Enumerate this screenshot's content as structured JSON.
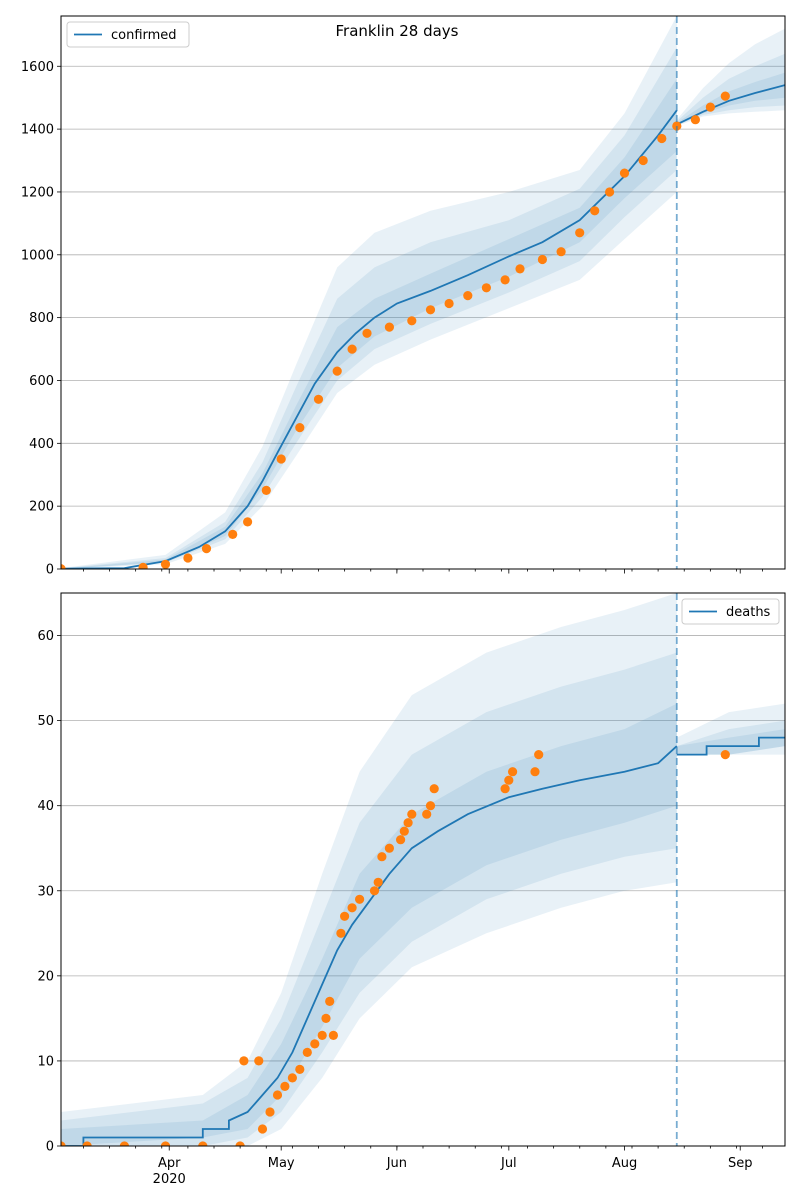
{
  "figure": {
    "title": "Franklin 28 days",
    "forecast_start": "2020-08-15",
    "colors": {
      "model": "#1f77b4",
      "observed": "#ff7f0e",
      "band": "#1f77b4",
      "grid": "#b0b0b0"
    }
  },
  "chart_data": [
    {
      "type": "line",
      "panel": "top",
      "title": "Franklin 28 days",
      "legend": {
        "entries": [
          "confirmed"
        ],
        "placement": "top-left"
      },
      "xlim": [
        "2020-03-03",
        "2020-09-13"
      ],
      "ylim": [
        0,
        1760
      ],
      "yticks": [
        0,
        200,
        400,
        600,
        800,
        1000,
        1200,
        1400,
        1600
      ],
      "grid": "horizontal",
      "model": {
        "name": "confirmed",
        "points": [
          [
            "2020-03-03",
            1
          ],
          [
            "2020-03-20",
            3
          ],
          [
            "2020-03-31",
            25
          ],
          [
            "2020-04-09",
            70
          ],
          [
            "2020-04-16",
            120
          ],
          [
            "2020-04-22",
            200
          ],
          [
            "2020-04-26",
            280
          ],
          [
            "2020-04-30",
            370
          ],
          [
            "2020-05-05",
            480
          ],
          [
            "2020-05-10",
            590
          ],
          [
            "2020-05-16",
            690
          ],
          [
            "2020-05-21",
            750
          ],
          [
            "2020-05-26",
            800
          ],
          [
            "2020-06-01",
            845
          ],
          [
            "2020-06-10",
            885
          ],
          [
            "2020-06-20",
            935
          ],
          [
            "2020-07-01",
            995
          ],
          [
            "2020-07-10",
            1040
          ],
          [
            "2020-07-20",
            1110
          ],
          [
            "2020-08-01",
            1250
          ],
          [
            "2020-08-10",
            1380
          ],
          [
            "2020-08-15",
            1460
          ]
        ],
        "forecast": [
          [
            "2020-08-15",
            1415
          ],
          [
            "2020-08-22",
            1455
          ],
          [
            "2020-08-29",
            1490
          ],
          [
            "2020-09-05",
            1515
          ],
          [
            "2020-09-13",
            1540
          ]
        ]
      },
      "bands": {
        "dates": [
          "2020-03-03",
          "2020-03-31",
          "2020-04-16",
          "2020-04-26",
          "2020-05-05",
          "2020-05-16",
          "2020-05-26",
          "2020-06-10",
          "2020-07-01",
          "2020-07-20",
          "2020-08-01",
          "2020-08-15"
        ],
        "outer_low": [
          0,
          15,
          80,
          200,
          360,
          560,
          650,
          730,
          830,
          920,
          1050,
          1200
        ],
        "outer_high": [
          3,
          45,
          180,
          390,
          650,
          960,
          1070,
          1140,
          1200,
          1270,
          1450,
          1760
        ],
        "mid_low": [
          0,
          20,
          95,
          230,
          400,
          600,
          700,
          780,
          880,
          980,
          1120,
          1270
        ],
        "mid_high": [
          2,
          35,
          150,
          340,
          580,
          860,
          960,
          1040,
          1110,
          1210,
          1380,
          1660
        ],
        "inner_low": [
          0,
          22,
          105,
          255,
          440,
          640,
          740,
          830,
          930,
          1040,
          1180,
          1330
        ],
        "inner_high": [
          1,
          30,
          135,
          305,
          520,
          770,
          860,
          940,
          1050,
          1150,
          1310,
          1560
        ],
        "forecast_dates": [
          "2020-08-15",
          "2020-08-22",
          "2020-08-29",
          "2020-09-05",
          "2020-09-13"
        ],
        "forecast_outer_low": [
          1410,
          1440,
          1450,
          1455,
          1460
        ],
        "forecast_outer_high": [
          1430,
          1530,
          1610,
          1670,
          1720
        ],
        "forecast_mid_low": [
          1412,
          1445,
          1460,
          1470,
          1475
        ],
        "forecast_mid_high": [
          1425,
          1500,
          1560,
          1600,
          1640
        ],
        "forecast_inner_low": [
          1414,
          1450,
          1475,
          1490,
          1500
        ],
        "forecast_inner_high": [
          1420,
          1475,
          1520,
          1550,
          1580
        ]
      },
      "observed": {
        "name": "observed",
        "points": [
          [
            "2020-03-03",
            1
          ],
          [
            "2020-03-25",
            5
          ],
          [
            "2020-03-31",
            15
          ],
          [
            "2020-04-06",
            35
          ],
          [
            "2020-04-11",
            65
          ],
          [
            "2020-04-18",
            110
          ],
          [
            "2020-04-22",
            150
          ],
          [
            "2020-04-27",
            250
          ],
          [
            "2020-05-01",
            350
          ],
          [
            "2020-05-06",
            450
          ],
          [
            "2020-05-11",
            540
          ],
          [
            "2020-05-16",
            630
          ],
          [
            "2020-05-20",
            700
          ],
          [
            "2020-05-24",
            750
          ],
          [
            "2020-05-30",
            770
          ],
          [
            "2020-06-05",
            790
          ],
          [
            "2020-06-10",
            825
          ],
          [
            "2020-06-15",
            845
          ],
          [
            "2020-06-20",
            870
          ],
          [
            "2020-06-25",
            895
          ],
          [
            "2020-06-30",
            920
          ],
          [
            "2020-07-04",
            955
          ],
          [
            "2020-07-10",
            985
          ],
          [
            "2020-07-15",
            1010
          ],
          [
            "2020-07-20",
            1070
          ],
          [
            "2020-07-24",
            1140
          ],
          [
            "2020-07-28",
            1200
          ],
          [
            "2020-08-01",
            1260
          ],
          [
            "2020-08-06",
            1300
          ],
          [
            "2020-08-11",
            1370
          ],
          [
            "2020-08-15",
            1410
          ],
          [
            "2020-08-20",
            1430
          ],
          [
            "2020-08-24",
            1470
          ],
          [
            "2020-08-28",
            1505
          ]
        ]
      }
    },
    {
      "type": "line",
      "panel": "bottom",
      "legend": {
        "entries": [
          "deaths"
        ],
        "placement": "top-right"
      },
      "xlim": [
        "2020-03-03",
        "2020-09-13"
      ],
      "ylim": [
        0,
        65
      ],
      "yticks": [
        0,
        10,
        20,
        30,
        40,
        50,
        60
      ],
      "xticks": [
        {
          "date": "2020-04-01",
          "label": "Apr",
          "sublabel": "2020"
        },
        {
          "date": "2020-05-01",
          "label": "May"
        },
        {
          "date": "2020-06-01",
          "label": "Jun"
        },
        {
          "date": "2020-07-01",
          "label": "Jul"
        },
        {
          "date": "2020-08-01",
          "label": "Aug"
        },
        {
          "date": "2020-09-01",
          "label": "Sep"
        }
      ],
      "grid": "horizontal",
      "model": {
        "name": "deaths",
        "points": [
          [
            "2020-03-03",
            0
          ],
          [
            "2020-03-09",
            0
          ],
          [
            "2020-03-09",
            1
          ],
          [
            "2020-04-10",
            1
          ],
          [
            "2020-04-10",
            2
          ],
          [
            "2020-04-17",
            2
          ],
          [
            "2020-04-17",
            3
          ],
          [
            "2020-04-22",
            4
          ],
          [
            "2020-04-26",
            6
          ],
          [
            "2020-04-30",
            8
          ],
          [
            "2020-05-04",
            11
          ],
          [
            "2020-05-08",
            15
          ],
          [
            "2020-05-12",
            19
          ],
          [
            "2020-05-16",
            23
          ],
          [
            "2020-05-20",
            26
          ],
          [
            "2020-05-25",
            29
          ],
          [
            "2020-05-30",
            32
          ],
          [
            "2020-06-05",
            35
          ],
          [
            "2020-06-12",
            37
          ],
          [
            "2020-06-20",
            39
          ],
          [
            "2020-07-01",
            41
          ],
          [
            "2020-07-10",
            42
          ],
          [
            "2020-07-20",
            43
          ],
          [
            "2020-08-01",
            44
          ],
          [
            "2020-08-10",
            45
          ],
          [
            "2020-08-15",
            47
          ]
        ],
        "forecast": [
          [
            "2020-08-15",
            46
          ],
          [
            "2020-08-23",
            46
          ],
          [
            "2020-08-23",
            47
          ],
          [
            "2020-09-06",
            47
          ],
          [
            "2020-09-06",
            48
          ],
          [
            "2020-09-13",
            48
          ]
        ]
      },
      "bands": {
        "dates": [
          "2020-03-03",
          "2020-04-10",
          "2020-04-22",
          "2020-05-01",
          "2020-05-12",
          "2020-05-22",
          "2020-06-05",
          "2020-06-25",
          "2020-07-15",
          "2020-08-01",
          "2020-08-15"
        ],
        "outer_low": [
          0,
          0,
          0,
          2,
          8,
          15,
          21,
          25,
          28,
          30,
          31
        ],
        "outer_high": [
          4,
          6,
          10,
          18,
          32,
          44,
          53,
          58,
          61,
          63,
          65
        ],
        "mid_low": [
          0,
          0,
          1,
          4,
          11,
          18,
          24,
          29,
          32,
          34,
          35
        ],
        "mid_high": [
          3,
          5,
          8,
          15,
          27,
          38,
          46,
          51,
          54,
          56,
          58
        ],
        "inner_low": [
          0,
          1,
          2,
          6,
          14,
          22,
          28,
          33,
          36,
          38,
          40
        ],
        "inner_high": [
          2,
          3,
          6,
          12,
          22,
          32,
          39,
          44,
          47,
          49,
          52
        ],
        "forecast_dates": [
          "2020-08-15",
          "2020-08-29",
          "2020-09-13"
        ],
        "forecast_outer_low": [
          46,
          46,
          46
        ],
        "forecast_outer_high": [
          48,
          51,
          52
        ],
        "forecast_mid_low": [
          46,
          46,
          47
        ],
        "forecast_mid_high": [
          47,
          49,
          50
        ],
        "forecast_inner_low": [
          46,
          46,
          47
        ],
        "forecast_inner_high": [
          47,
          48,
          49
        ]
      },
      "observed": {
        "name": "observed",
        "points": [
          [
            "2020-03-03",
            0
          ],
          [
            "2020-03-10",
            0
          ],
          [
            "2020-03-20",
            0
          ],
          [
            "2020-03-31",
            0
          ],
          [
            "2020-04-10",
            0
          ],
          [
            "2020-04-20",
            0
          ],
          [
            "2020-04-21",
            10
          ],
          [
            "2020-04-25",
            10
          ],
          [
            "2020-04-26",
            2
          ],
          [
            "2020-04-28",
            4
          ],
          [
            "2020-04-30",
            6
          ],
          [
            "2020-05-02",
            7
          ],
          [
            "2020-05-04",
            8
          ],
          [
            "2020-05-06",
            9
          ],
          [
            "2020-05-08",
            11
          ],
          [
            "2020-05-10",
            12
          ],
          [
            "2020-05-12",
            13
          ],
          [
            "2020-05-13",
            15
          ],
          [
            "2020-05-14",
            17
          ],
          [
            "2020-05-15",
            13
          ],
          [
            "2020-05-17",
            25
          ],
          [
            "2020-05-18",
            27
          ],
          [
            "2020-05-20",
            28
          ],
          [
            "2020-05-22",
            29
          ],
          [
            "2020-05-26",
            30
          ],
          [
            "2020-05-27",
            31
          ],
          [
            "2020-05-28",
            34
          ],
          [
            "2020-05-30",
            35
          ],
          [
            "2020-06-02",
            36
          ],
          [
            "2020-06-03",
            37
          ],
          [
            "2020-06-04",
            38
          ],
          [
            "2020-06-05",
            39
          ],
          [
            "2020-06-09",
            39
          ],
          [
            "2020-06-10",
            40
          ],
          [
            "2020-06-11",
            42
          ],
          [
            "2020-06-30",
            42
          ],
          [
            "2020-07-01",
            43
          ],
          [
            "2020-07-02",
            44
          ],
          [
            "2020-07-08",
            44
          ],
          [
            "2020-07-09",
            46
          ],
          [
            "2020-08-28",
            46
          ]
        ]
      }
    }
  ]
}
